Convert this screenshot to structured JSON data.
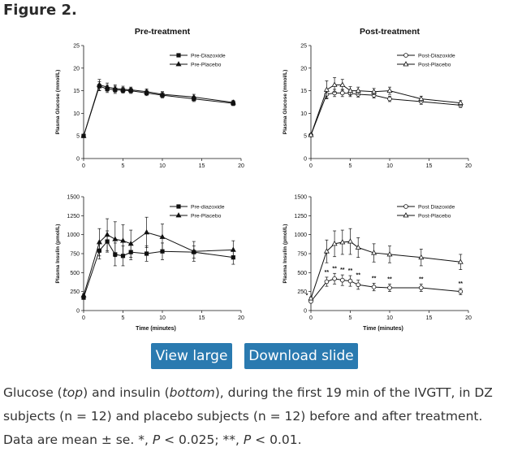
{
  "figure_title": "Figure 2.",
  "buttons": {
    "view_large": "View large",
    "download_slide": "Download slide"
  },
  "caption": {
    "t1": "Glucose (",
    "top": "top",
    "t2": ") and insulin (",
    "bottom": "bottom",
    "t3": "), during the first 19 min of the IVGTT, in DZ subjects (n = 12) and placebo subjects (n = 12) before and after treatment. Data are mean ± se. *, ",
    "p1": "P",
    "t4": " < 0.025; **, ",
    "p2": "P",
    "t5": " < 0.01."
  },
  "chart_data": [
    {
      "type": "line",
      "title": "Pre-treatment",
      "xlabel": "",
      "ylabel": "Plasma Glucose (mmol/L)",
      "xlim": [
        0,
        20
      ],
      "ylim": [
        0,
        25
      ],
      "xticks": [
        0,
        5,
        10,
        15,
        20
      ],
      "yticks": [
        0,
        5,
        10,
        15,
        20,
        25
      ],
      "legend": "top-right",
      "series": [
        {
          "name": "Pre-Diazoxide",
          "marker": "filled-square",
          "x": [
            0,
            2,
            3,
            4,
            5,
            6,
            8,
            10,
            14,
            19
          ],
          "y": [
            5,
            16,
            15.4,
            15.2,
            15.1,
            15,
            14.5,
            14,
            13.2,
            12.2
          ],
          "err": [
            0.2,
            1,
            0.8,
            0.8,
            0.6,
            0.6,
            0.6,
            0.6,
            0.6,
            0.5
          ]
        },
        {
          "name": "Pre-Placebo",
          "marker": "filled-triangle",
          "x": [
            0,
            2,
            3,
            4,
            5,
            6,
            8,
            10,
            14,
            19
          ],
          "y": [
            5,
            16.3,
            15.8,
            15.5,
            15.3,
            15.2,
            14.8,
            14.2,
            13.6,
            12.4
          ],
          "err": [
            0.2,
            1.2,
            0.9,
            0.8,
            0.7,
            0.6,
            0.6,
            0.6,
            0.6,
            0.5
          ]
        }
      ]
    },
    {
      "type": "line",
      "title": "Post-treatment",
      "xlabel": "",
      "ylabel": "Plasma Glucose (mmol/L)",
      "xlim": [
        0,
        20
      ],
      "ylim": [
        0,
        25
      ],
      "xticks": [
        0,
        5,
        10,
        15,
        20
      ],
      "yticks": [
        0,
        5,
        10,
        15,
        20,
        25
      ],
      "legend": "top-right",
      "series": [
        {
          "name": "Post-Diazoxide",
          "marker": "open-circle",
          "x": [
            0,
            2,
            3,
            4,
            5,
            6,
            8,
            10,
            14,
            19
          ],
          "y": [
            5.2,
            14.2,
            14.5,
            14.5,
            14.4,
            14.2,
            14,
            13.2,
            12.6,
            11.8
          ],
          "err": [
            0.2,
            0.8,
            0.8,
            0.8,
            0.7,
            0.6,
            0.6,
            0.6,
            0.6,
            0.5
          ]
        },
        {
          "name": "Post-Placebo",
          "marker": "open-triangle",
          "x": [
            0,
            2,
            3,
            4,
            5,
            6,
            8,
            10,
            14,
            19
          ],
          "y": [
            5.2,
            15.2,
            16.3,
            16.3,
            15,
            15,
            14.8,
            15,
            13.2,
            12.3
          ],
          "err": [
            0.2,
            2,
            1.6,
            1.2,
            0.9,
            0.8,
            0.7,
            0.8,
            0.6,
            0.5
          ]
        }
      ]
    },
    {
      "type": "line",
      "title": "",
      "xlabel": "Time (minutes)",
      "ylabel": "Plasma Insulin (pmol/L)",
      "xlim": [
        0,
        20
      ],
      "ylim": [
        0,
        1500
      ],
      "xticks": [
        0,
        5,
        10,
        15,
        20
      ],
      "yticks": [
        0,
        250,
        500,
        750,
        1000,
        1250,
        1500
      ],
      "legend": "top-right",
      "series": [
        {
          "name": "Pre-diazoxide",
          "marker": "filled-square",
          "x": [
            0,
            2,
            3,
            4,
            5,
            6,
            8,
            10,
            14,
            19
          ],
          "y": [
            170,
            790,
            910,
            740,
            720,
            770,
            750,
            780,
            770,
            700
          ],
          "err": [
            20,
            110,
            140,
            150,
            130,
            100,
            100,
            110,
            80,
            90
          ]
        },
        {
          "name": "Pre-Placebo",
          "marker": "filled-triangle",
          "x": [
            0,
            2,
            3,
            4,
            5,
            6,
            8,
            10,
            14,
            19
          ],
          "y": [
            200,
            900,
            1000,
            940,
            920,
            880,
            1030,
            970,
            780,
            800
          ],
          "err": [
            20,
            180,
            210,
            230,
            210,
            180,
            200,
            170,
            130,
            120
          ]
        }
      ]
    },
    {
      "type": "line",
      "title": "",
      "xlabel": "Time (minutes)",
      "ylabel": "Plasma Insulin (pmol/L)",
      "xlim": [
        0,
        20
      ],
      "ylim": [
        0,
        1500
      ],
      "xticks": [
        0,
        5,
        10,
        15,
        20
      ],
      "yticks": [
        0,
        250,
        500,
        750,
        1000,
        1250,
        1500
      ],
      "legend": "top-right",
      "annotations": [
        {
          "x": 0,
          "text": "*"
        },
        {
          "x": 2,
          "text": "**"
        },
        {
          "x": 3,
          "text": "**"
        },
        {
          "x": 4,
          "text": "**"
        },
        {
          "x": 5,
          "text": "**"
        },
        {
          "x": 6,
          "text": "**"
        },
        {
          "x": 8,
          "text": "**"
        },
        {
          "x": 10,
          "text": "**"
        },
        {
          "x": 14,
          "text": "**"
        },
        {
          "x": 19,
          "text": "**"
        }
      ],
      "series": [
        {
          "name": "Post Diazoxide",
          "marker": "open-circle",
          "x": [
            0,
            2,
            3,
            4,
            5,
            6,
            8,
            10,
            14,
            19
          ],
          "y": [
            120,
            380,
            420,
            400,
            390,
            340,
            310,
            300,
            300,
            250
          ],
          "err": [
            15,
            60,
            70,
            70,
            70,
            60,
            50,
            50,
            50,
            40
          ]
        },
        {
          "name": "Post-Placebo",
          "marker": "open-triangle",
          "x": [
            0,
            2,
            3,
            4,
            5,
            6,
            8,
            10,
            14,
            19
          ],
          "y": [
            160,
            780,
            880,
            900,
            910,
            830,
            760,
            740,
            700,
            640
          ],
          "err": [
            20,
            150,
            170,
            160,
            170,
            130,
            120,
            110,
            110,
            100
          ]
        }
      ]
    }
  ]
}
